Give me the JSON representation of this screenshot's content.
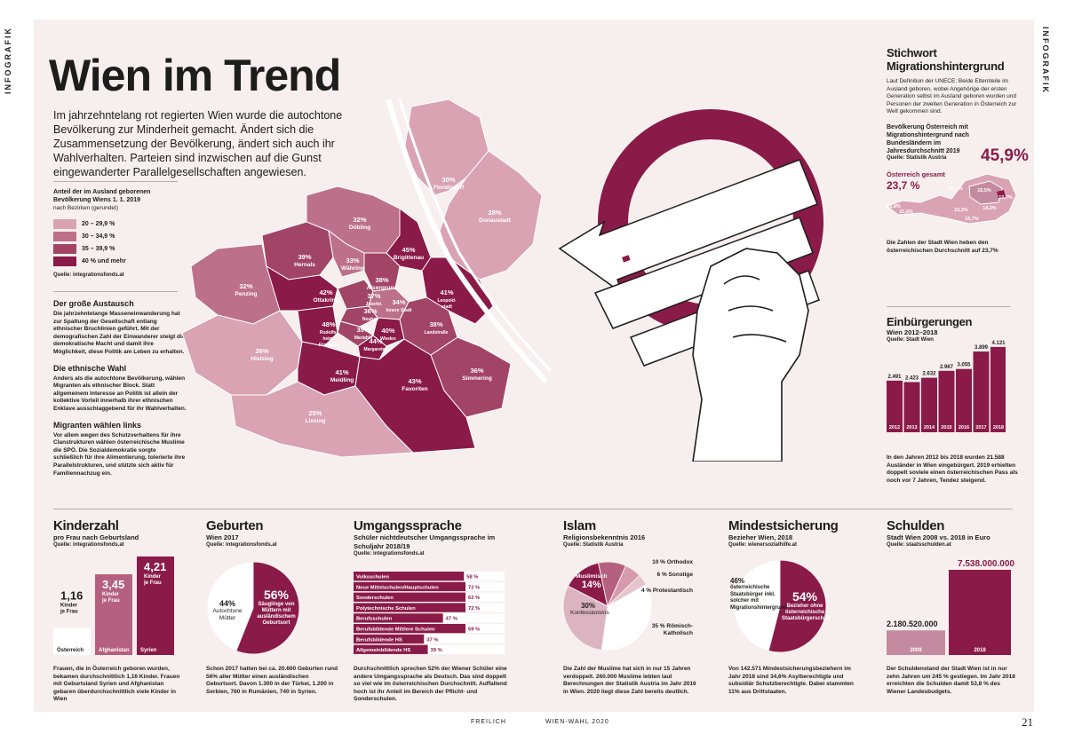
{
  "side_label": "INFOGRAFIK",
  "title": "Wien im Trend",
  "lead": "Im jahrzehntelang rot regierten Wien wurde die autochtone Bevölkerung zur Minderheit gemacht. Ändert sich die Zusammensetzung der Bevölkerung, ändert sich auch ihr Wahlverhalten. Parteien sind inzwischen auf die Gunst eingewanderter Parallelgesellschaften angewiesen.",
  "legend": {
    "title": "Anteil der im Ausland geborenen Bevölkerung Wiens 1. 1. 2019",
    "subtitle": "nach Bezirken (gerundet)",
    "items": [
      {
        "label": "20 – 29,9 %",
        "color": "#d9a3b4"
      },
      {
        "label": "30 – 34,9 %",
        "color": "#bd7089"
      },
      {
        "label": "35 – 39,9 %",
        "color": "#a24466"
      },
      {
        "label": "40 % und mehr",
        "color": "#8a1a48"
      }
    ],
    "source": "Quelle: integrationsfonds.at"
  },
  "districts": [
    {
      "pct": "30%",
      "name": "Floridsdorf"
    },
    {
      "pct": "28%",
      "name": "Donaustadt"
    },
    {
      "pct": "32%",
      "name": "Döbling"
    },
    {
      "pct": "45%",
      "name": "Brigittenau"
    },
    {
      "pct": "39%",
      "name": "Hernals"
    },
    {
      "pct": "33%",
      "name": "Währing"
    },
    {
      "pct": "38%",
      "name": "Alsergrund"
    },
    {
      "pct": "32%",
      "name": "Penzing"
    },
    {
      "pct": "42%",
      "name": "Ottakring"
    },
    {
      "pct": "37%",
      "name": "Josefst."
    },
    {
      "pct": "34%",
      "name": "Innere Stadt"
    },
    {
      "pct": "41%",
      "name": "Leopold-stadt"
    },
    {
      "pct": "48%",
      "name": "Rudolfs-heim-Fünfhaus"
    },
    {
      "pct": "36%",
      "name": "Neubau"
    },
    {
      "pct": "35%",
      "name": "Mariahilf"
    },
    {
      "pct": "40%",
      "name": "Wieden"
    },
    {
      "pct": "44%",
      "name": "Margareten"
    },
    {
      "pct": "38%",
      "name": "Landstraße"
    },
    {
      "pct": "26%",
      "name": "Hietzing"
    },
    {
      "pct": "41%",
      "name": "Meidling"
    },
    {
      "pct": "43%",
      "name": "Favoriten"
    },
    {
      "pct": "36%",
      "name": "Simmering"
    },
    {
      "pct": "25%",
      "name": "Liesing"
    }
  ],
  "left_text": [
    {
      "head": "Der große Austausch",
      "body": "Die jahrzehntelange Masseneinwanderung hat zur Spaltung der Gesellschaft entlang ethnischer Bruchlinien geführt. Mit der demografischen Zahl der Einwanderer steigt die demokratische Macht und damit ihre Möglichkeit, diese Politik am Leben zu erhalten."
    },
    {
      "head": "Die ethnische Wahl",
      "body": "Anders als die autochtone Bevölkerung, wählen Migranten als ethnischer Block. Statt allgemeinem Interesse an Politik ist allein der kollektive Vorteil innerhalb ihrer ethnischen Enklave ausschlaggebend für ihr Wahlverhalten."
    },
    {
      "head": "Migranten wählen links",
      "body": "Vor allem wegen des Schutzverhaltens für ihre Clanstrukturen wählen österreichische Muslime die SPÖ. Die Sozialdemokratie sorgte schließlich für ihre Alimentierung, tolerierte ihre Parallelstrukturen, und stützte sich aktiv für Familiennachzug ein."
    }
  ],
  "stichwort": {
    "title": "Stichwort Migrationshintergrund",
    "body": "Laut Definition der UNECE: Beide Elternteile im Ausland geboren, wobei Angehörige der ersten Generation selbst im Ausland geboren wurden und Personen der zweiten Generation in Österreich zur Welt gekommen sind.",
    "map_title": "Bevölkerung Österreich mit Migrationshintergrund nach Bundesländern im Jahresdurchschnitt 2019",
    "source": "Quelle: Statistik Austria",
    "austria_label": "Österreich gesamt",
    "austria_value": "23,7 %",
    "vienna_value": "45,9%",
    "state_values": [
      "26,8%",
      "21,6%",
      "19,5%",
      "15,5%",
      "12,7%",
      "23,2%",
      "14,2%",
      "15,7%"
    ],
    "note": "Die Zahlen der Stadt Wien heben den österreichischen Durchschnitt auf 23,7%"
  },
  "einbuergerungen": {
    "title": "Einbürgerungen",
    "subtitle": "Wien 2012–2018",
    "source": "Quelle: Stadt Wien",
    "note": "In den Jahren 2012 bis 2018 wurden 21.588 Ausländer in Wien eingebürgert. 2019 erhielten doppelt soviele einen österreichischen Pass als noch vor 7 Jahren, Tendez steigend."
  },
  "chart_data": [
    {
      "type": "bar",
      "id": "einbuergerungen",
      "title": "Einbürgerungen",
      "categories": [
        "2012",
        "2013",
        "2014",
        "2015",
        "2016",
        "2017",
        "2018"
      ],
      "values": [
        2491,
        2423,
        2632,
        2967,
        3055,
        3899,
        4121
      ],
      "value_labels": [
        "2.491",
        "2.423",
        "2.632",
        "2.967",
        "3.055",
        "3.899",
        "4.121"
      ],
      "color": "#8a1a48"
    },
    {
      "type": "bar",
      "id": "kinderzahl",
      "title": "Kinderzahl",
      "categories": [
        "Österreich",
        "Afghanistan",
        "Syrien"
      ],
      "values": [
        1.16,
        3.45,
        4.21
      ],
      "value_labels": [
        "1,16",
        "3,45",
        "4,21"
      ],
      "unit_label": "Kinder je Frau",
      "colors": [
        "#ffffff",
        "#b5607e",
        "#8a1a48"
      ]
    },
    {
      "type": "pie",
      "id": "geburten",
      "title": "Geburten",
      "labels": [
        "Säuglinge von Müttern mit ausländischem Geburtsort",
        "Autochtone Mütter"
      ],
      "values": [
        56,
        44
      ],
      "colors": [
        "#8a1a48",
        "#ffffff"
      ]
    },
    {
      "type": "bar",
      "id": "umgangssprache",
      "title": "Umgangssprache",
      "categories": [
        "Volksschulen",
        "Neue Mittelschulen/Hauptschulen",
        "Sonderschulen",
        "Polytechnische Schulen",
        "Berufsschulen",
        "Berufsbildende Mittlere Schulen",
        "Berufsbildende HS",
        "Allgemeinbildende HS"
      ],
      "values": [
        58,
        72,
        62,
        72,
        47,
        59,
        37,
        39
      ],
      "value_labels": [
        "58 %",
        "72 %",
        "62 %",
        "72 %",
        "47 %",
        "59 %",
        "37 %",
        "39 %"
      ],
      "color": "#8a1a48"
    },
    {
      "type": "pie",
      "id": "islam",
      "title": "Islam",
      "labels": [
        "Muslimisch",
        "Orthodox",
        "Sonstige",
        "Protestantisch",
        "Römisch-Katholisch",
        "Konfessionslos"
      ],
      "values": [
        14,
        10,
        6,
        4,
        35,
        30
      ],
      "colors": [
        "#8a1a48",
        "#b5607e",
        "#d59aad",
        "#e6c3cd",
        "#ffffff",
        "#dcb4c1"
      ]
    },
    {
      "type": "pie",
      "id": "mindestsicherung",
      "title": "Mindestsicherung",
      "labels": [
        "Bezieher ohne österreichische Staatsbürgerschaft",
        "österreichische Staatsbürger inkl. solcher mit Migrationshintergrund"
      ],
      "values": [
        54,
        46
      ],
      "colors": [
        "#8a1a48",
        "#ffffff"
      ]
    },
    {
      "type": "bar",
      "id": "schulden",
      "title": "Schulden",
      "categories": [
        "2008",
        "2018"
      ],
      "values": [
        2180520000,
        7538000000
      ],
      "value_labels": [
        "2.180.520.000",
        "7.538.000.000"
      ],
      "colors": [
        "#c48a9f",
        "#8a1a48"
      ]
    }
  ],
  "kinderzahl": {
    "title": "Kinderzahl",
    "subtitle": "pro Frau nach Geburtsland",
    "source": "Quelle: integrationsfonds.at",
    "unit": "Kinder je Frau",
    "note": "Frauen, die in Österreich geboren wurden, bekamen durchschnittlich 1,16 Kinder. Frauen mit Geburtsland Syrien und Afghanistan gebaren überdurchschnittlich viele Kinder in Wien"
  },
  "geburten": {
    "title": "Geburten",
    "subtitle": "Wien 2017",
    "source": "Quelle: integrationsfonds.at",
    "pct_a": "56%",
    "label_a": "Säuglinge von Müttern mit ausländischem Geburtsort",
    "pct_b": "44%",
    "label_b": "Autochtone Mütter",
    "note": "Schon 2017 hatten bei ca. 20.600 Geburten rund 56% aller Mütter einen ausländischen Geburtsort. Davon 1.300 in der Türkei, 1.200 in Serbien, 760 in Rumänien, 740 in Syrien."
  },
  "umgangssprache": {
    "title": "Umgangssprache",
    "subtitle": "Schüler nichtdeutscher Umgangssprache im Schuljahr 2018/19",
    "source": "Quelle: integrationsfonds.at",
    "note": "Durchschnittlich sprechen 52% der Wiener Schüler eine andere Umgangssprache als Deutsch. Das sind doppelt so viel wie im österreichischen Durchschnitt. Auffallend hoch ist ihr Anteil im Bereich der Pflicht- und Sonderschulen."
  },
  "islam": {
    "title": "Islam",
    "subtitle": "Religionsbekenntnis 2016",
    "source": "Quelle: Statistik Austria",
    "muslim_label": "Muslimisch",
    "muslim_pct": "14%",
    "konf_pct": "30%",
    "konf_label": "Konfessionslos",
    "labels": [
      {
        "pct": "10 %",
        "name": "Orthodox"
      },
      {
        "pct": "6 %",
        "name": "Sonstige"
      },
      {
        "pct": "4 %",
        "name": "Protestantisch"
      },
      {
        "pct": "35 %",
        "name": "Römisch-Katholisch"
      }
    ],
    "note": "Die Zahl der Muslime hat sich in nur 15 Jahren verdoppelt. 260.000 Muslime lebten laut Berechnungen der Statistik Austria im Jahr 2016 in Wien. 2020 liegt diese Zahl bereits deutlich."
  },
  "mindest": {
    "title": "Mindestsicherung",
    "subtitle": "Bezieher Wien, 2018",
    "source": "Quelle: wienersozialhilfe.at",
    "pct_a": "54%",
    "label_a": "Bezieher ohne österreichische Staatsbürgerschaft",
    "pct_b": "46%",
    "label_b": "österreichische Staatsbürger inkl. solcher mit Migrationshintergrund",
    "note": "Von 142.571 Mindestsicherungsbeziehern im Jahr 2018 sind 34,6% Asylberechtigte und subsidiär Schutzberechtigte. Dabei stammten 11% aus Drittstaaten."
  },
  "schulden": {
    "title": "Schulden",
    "subtitle": "Stadt Wien 2008 vs. 2018 in Euro",
    "source": "Quelle: staatsschulden.at",
    "note": "Der Schuldenstand der Stadt Wien ist in nur zehn Jahren um 245 % gestiegen. Im Jahr 2018 erreichten die Schulden damit 53,8 % des Wiener Landesbudgets."
  },
  "footer": {
    "left": "FREILICH",
    "center": "WIEN-WAHL 2020",
    "page": "21"
  }
}
